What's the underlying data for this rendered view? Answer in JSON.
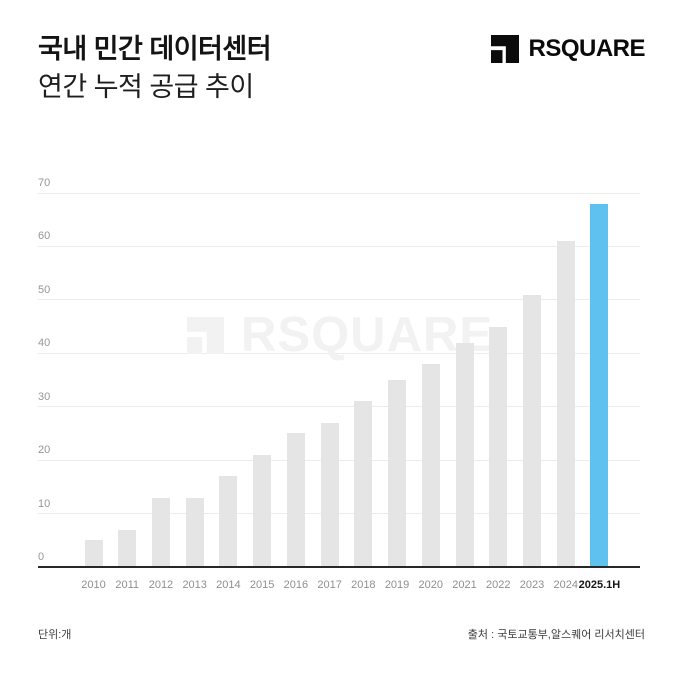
{
  "header": {
    "title_line1": "국내 민간 데이터센터",
    "title_line2": "연간 누적 공급 추이",
    "logo_text": "RSQUARE"
  },
  "chart_data": {
    "type": "bar",
    "title": "국내 민간 데이터센터 연간 누적 공급 추이",
    "categories": [
      "2010",
      "2011",
      "2012",
      "2013",
      "2014",
      "2015",
      "2016",
      "2017",
      "2018",
      "2019",
      "2020",
      "2021",
      "2022",
      "2023",
      "2024",
      "2025.1H"
    ],
    "values": [
      5,
      7,
      13,
      13,
      17,
      21,
      25,
      27,
      31,
      35,
      38,
      42,
      45,
      51,
      61,
      68
    ],
    "xlabel": "",
    "ylabel": "단위:개",
    "ylim": [
      0,
      70
    ],
    "yticks": [
      0,
      10,
      20,
      30,
      40,
      50,
      60,
      70
    ],
    "grid": true,
    "legend": "none",
    "bar_color": "#e5e5e5",
    "highlight_color": "#5fc1ef",
    "highlight_index": 15,
    "watermark_text": "RSQUARE"
  },
  "footer": {
    "unit_label": "단위:개",
    "source_label": "출처 : 국토교통부,알스퀘어 리서치센터"
  },
  "colors": {
    "background": "#ffffff",
    "title": "#141414",
    "axis_label": "#969696",
    "gridline": "#ececec",
    "baseline": "#26282a",
    "bar": "#e5e5e5",
    "highlight": "#5fc1ef",
    "watermark": "#f2f2f2",
    "logo": "#0b0b0b"
  }
}
